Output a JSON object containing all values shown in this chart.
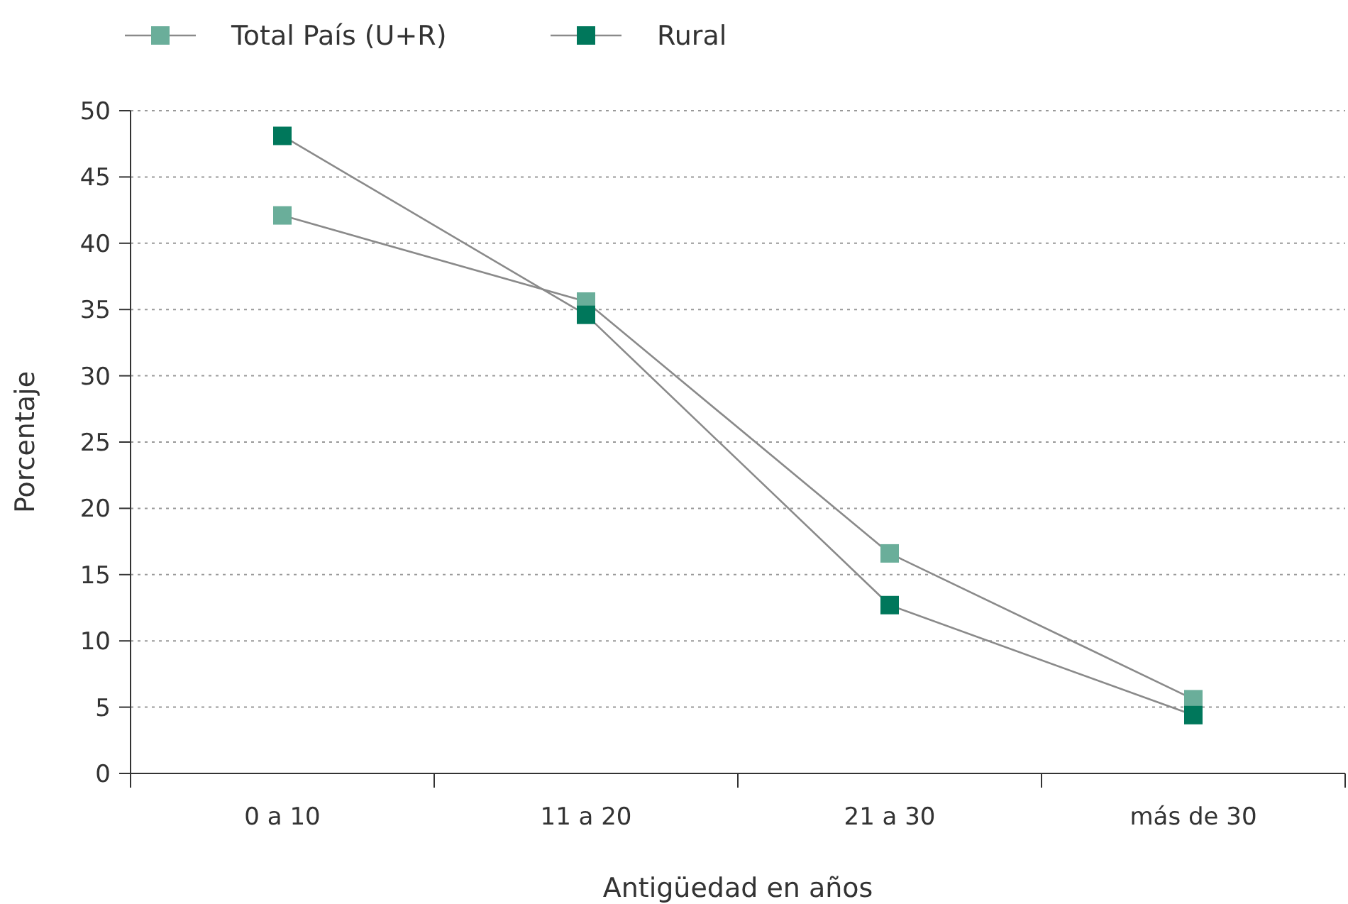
{
  "chart_data": {
    "type": "line",
    "xlabel": "Antigüedad en años",
    "ylabel": "Porcentaje",
    "categories": [
      "0 a 10",
      "11 a 20",
      "21 a 30",
      "más de 30"
    ],
    "series": [
      {
        "name": "Total País (U+R)",
        "color": "#6aae9a",
        "values": [
          42.1,
          35.6,
          16.6,
          5.6
        ]
      },
      {
        "name": "Rural",
        "color": "#00775b",
        "values": [
          48.1,
          34.6,
          12.7,
          4.4
        ]
      }
    ],
    "ylim": [
      0,
      50
    ],
    "yticks": [
      0,
      5,
      10,
      15,
      20,
      25,
      30,
      35,
      40,
      45,
      50
    ],
    "grid": "y",
    "legend": "top left",
    "marker": "square",
    "line_style": "solid"
  }
}
